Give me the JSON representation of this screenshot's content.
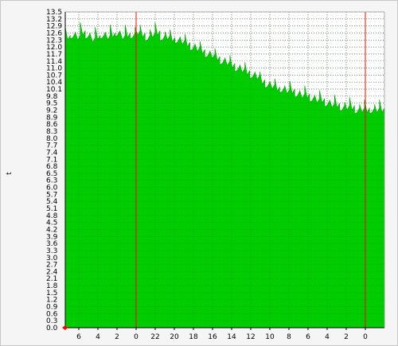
{
  "chart_data": {
    "type": "area",
    "title": "",
    "xlabel": "",
    "ylabel": "t",
    "ylim": [
      0,
      13.5
    ],
    "grid": true,
    "x_tick_labels": [
      "6",
      "4",
      "2",
      "0",
      "22",
      "20",
      "18",
      "16",
      "14",
      "12",
      "10",
      "8",
      "6",
      "4",
      "2",
      "0"
    ],
    "y_tick_labels": [
      "0.0",
      "0.3",
      "0.6",
      "0.9",
      "1.2",
      "1.5",
      "1.8",
      "2.1",
      "2.4",
      "2.7",
      "3.0",
      "3.3",
      "3.6",
      "3.9",
      "4.2",
      "4.5",
      "4.8",
      "5.1",
      "5.4",
      "5.7",
      "6.0",
      "6.3",
      "6.5",
      "6.8",
      "7.1",
      "7.4",
      "7.7",
      "8.0",
      "8.3",
      "8.6",
      "8.9",
      "9.2",
      "9.5",
      "9.8",
      "10.1",
      "10.4",
      "10.7",
      "11.0",
      "11.4",
      "11.7",
      "12.0",
      "12.3",
      "12.6",
      "12.9",
      "13.2",
      "13.5"
    ],
    "series": [
      {
        "values": [
          12.5,
          12.6,
          12.5,
          12.7,
          12.6,
          12.4,
          12.5,
          12.6,
          12.5,
          12.6,
          12.7,
          12.5,
          12.6,
          12.6,
          12.7,
          12.6,
          12.5,
          12.6,
          12.7,
          12.5,
          12.5,
          12.4,
          12.4,
          12.3,
          12.2,
          12.1,
          12.0,
          11.9,
          11.8,
          11.7,
          11.6,
          11.5,
          11.4,
          11.3,
          11.2,
          11.1,
          11.0,
          10.9,
          10.8,
          10.6,
          10.5,
          10.4,
          10.3,
          10.3,
          10.2,
          10.2,
          10.1,
          10.0,
          10.0,
          9.9,
          9.8,
          9.8,
          9.7,
          9.6,
          9.6,
          9.5,
          9.5,
          9.5,
          9.4,
          9.4,
          9.4,
          9.4,
          9.4,
          9.4
        ]
      }
    ],
    "day_markers_x": [
      "0",
      "0"
    ],
    "colors": {
      "area": "#00cc00",
      "area_edge": "#00a800",
      "grid": "#555555",
      "plot_bg": "#ffffff",
      "day_marker": "#ff0000",
      "axis": "#000000",
      "origin_marker": "#ff0000"
    }
  }
}
